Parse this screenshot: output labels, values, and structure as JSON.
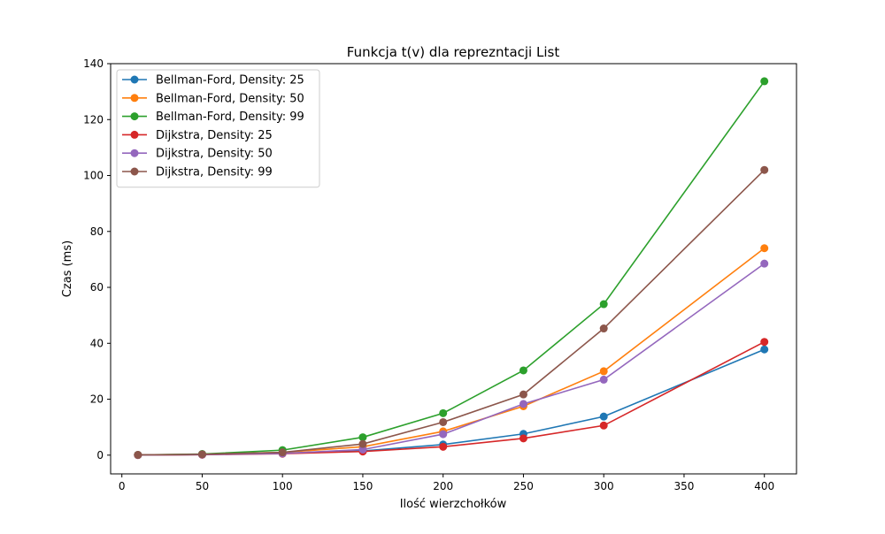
{
  "chart_data": {
    "type": "line",
    "title": "Funkcja t(v) dla reprezntacji List",
    "xlabel": "Ilość wierzchołków",
    "ylabel": "Czas (ms)",
    "x": [
      10,
      50,
      100,
      150,
      200,
      250,
      300,
      400
    ],
    "xlim": [
      -7,
      420
    ],
    "ylim": [
      -6.7,
      140
    ],
    "xticks": [
      0,
      50,
      100,
      150,
      200,
      250,
      300,
      350,
      400
    ],
    "yticks": [
      0,
      20,
      40,
      60,
      80,
      100,
      120,
      140
    ],
    "xtick_labels": [
      "0",
      "50",
      "100",
      "150",
      "200",
      "250",
      "300",
      "350",
      "400"
    ],
    "ytick_labels": [
      "0",
      "20",
      "40",
      "60",
      "80",
      "100",
      "120",
      "140"
    ],
    "grid": false,
    "legend_position": "top-left",
    "series": [
      {
        "name": "Bellman-Ford, Density: 25",
        "color": "#1f77b4",
        "values": [
          0.05,
          0.2,
          0.7,
          1.5,
          3.8,
          7.6,
          13.8,
          37.8
        ]
      },
      {
        "name": "Bellman-Ford, Density: 50",
        "color": "#ff7f0e",
        "values": [
          0.05,
          0.25,
          1.0,
          3.0,
          8.5,
          17.5,
          30.0,
          74.0
        ]
      },
      {
        "name": "Bellman-Ford, Density: 99",
        "color": "#2ca02c",
        "values": [
          0.1,
          0.4,
          1.8,
          6.4,
          15.0,
          30.3,
          54.0,
          133.7
        ]
      },
      {
        "name": "Dijkstra, Density: 25",
        "color": "#d62728",
        "values": [
          0.05,
          0.15,
          0.5,
          1.3,
          3.0,
          6.0,
          10.6,
          40.5
        ]
      },
      {
        "name": "Dijkstra, Density: 50",
        "color": "#9467bd",
        "values": [
          0.05,
          0.2,
          0.6,
          2.0,
          7.5,
          18.3,
          27.0,
          68.5
        ]
      },
      {
        "name": "Dijkstra, Density: 99",
        "color": "#8c564b",
        "values": [
          0.08,
          0.3,
          1.0,
          4.0,
          11.8,
          21.7,
          45.3,
          102.0
        ]
      }
    ]
  }
}
